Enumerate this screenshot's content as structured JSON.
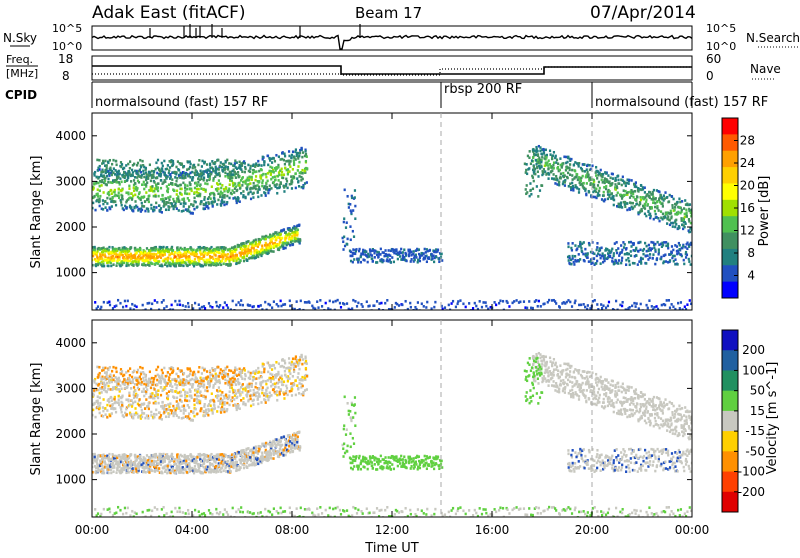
{
  "header": {
    "station": "Adak East (fitACF)",
    "beam": "Beam 17",
    "date": "07/Apr/2014"
  },
  "panels": {
    "sky_label": "N.Sky",
    "search_label": "N.Search",
    "sky_ticks": [
      "10^5",
      "10^0"
    ],
    "search_ticks": [
      "10^5",
      "10^0"
    ],
    "freq_label_1": "Freq.",
    "freq_label_2": "[MHz]",
    "freq_ticks": [
      "18",
      "8"
    ],
    "nave_label": "Nave",
    "nave_ticks": [
      "60",
      "0"
    ],
    "cpid_label": "CPID",
    "cpid_segments": [
      {
        "name": "normalsound (fast) 157 RF",
        "start": "00:00",
        "end": "14:00"
      },
      {
        "name": "rbsp 200 RF",
        "start": "14:00",
        "end": "20:00"
      },
      {
        "name": "normalsound (fast) 157 RF",
        "start": "20:00",
        "end": "24:00"
      }
    ]
  },
  "chart_data": [
    {
      "type": "heatmap",
      "title": "",
      "xlabel": "Time UT",
      "ylabel": "Slant Range [km]",
      "x_ticks": [
        "00:00",
        "04:00",
        "08:00",
        "12:00",
        "16:00",
        "20:00",
        "00:00"
      ],
      "y_ticks": [
        "1000",
        "2000",
        "3000",
        "4000"
      ],
      "x_range_hours": [
        0,
        24
      ],
      "y_range_km": [
        180,
        4500
      ],
      "colorbar": {
        "label": "Power [dB]",
        "ticks": [
          "28",
          "24",
          "20",
          "16",
          "12",
          "8",
          "4"
        ],
        "colors": [
          "#ff0000",
          "#ff5a00",
          "#ffa000",
          "#ffd000",
          "#ffff00",
          "#a0e000",
          "#50c050",
          "#409060",
          "#208080",
          "#2050c0",
          "#0000ff"
        ]
      },
      "features": [
        {
          "name": "near-range band",
          "t_start_h": 0.0,
          "t_end_h": 8.4,
          "range_km": [
            1150,
            1600
          ],
          "peak_db": 28
        },
        {
          "name": "far-range band",
          "t_start_h": 0.0,
          "t_end_h": 8.6,
          "range_km": [
            2500,
            3500
          ],
          "peak_db": 16
        },
        {
          "name": "mid-day echoes",
          "t_start_h": 10.2,
          "t_end_h": 14.0,
          "range_km": [
            1200,
            1600
          ],
          "peak_db": 8
        },
        {
          "name": "evening descending band",
          "t_start_h": 17.5,
          "t_end_h": 24.0,
          "range_km": [
            2000,
            3600
          ],
          "peak_db": 16
        }
      ]
    },
    {
      "type": "heatmap",
      "title": "",
      "xlabel": "Time UT",
      "ylabel": "Slant Range [km]",
      "x_ticks": [
        "00:00",
        "04:00",
        "08:00",
        "12:00",
        "16:00",
        "20:00",
        "00:00"
      ],
      "y_ticks": [
        "1000",
        "2000",
        "3000",
        "4000"
      ],
      "x_range_hours": [
        0,
        24
      ],
      "y_range_km": [
        180,
        4500
      ],
      "colorbar": {
        "label": "Velocity [m s^-1]",
        "ticks": [
          "200",
          "100",
          "50",
          "15",
          "-15",
          "-50",
          "-100",
          "-200"
        ],
        "colors": [
          "#1010c0",
          "#2060a0",
          "#209060",
          "#60d040",
          "#c8c8c0",
          "#ffd000",
          "#ff9000",
          "#ff4000",
          "#e00000"
        ]
      },
      "features": [
        {
          "name": "ground scatter band",
          "t_start_h": 0.0,
          "t_end_h": 8.4,
          "range_km": [
            1150,
            1600
          ],
          "velocity_ms": 0
        },
        {
          "name": "far-range scatter",
          "t_start_h": 0.0,
          "t_end_h": 8.6,
          "range_km": [
            2500,
            3500
          ],
          "velocity_ms": -20
        },
        {
          "name": "mid-day green echoes",
          "t_start_h": 10.2,
          "t_end_h": 14.0,
          "range_km": [
            1200,
            1600
          ],
          "velocity_ms": 50
        },
        {
          "name": "evening grey band",
          "t_start_h": 17.5,
          "t_end_h": 24.0,
          "range_km": [
            2000,
            3600
          ],
          "velocity_ms": 0
        }
      ]
    }
  ]
}
